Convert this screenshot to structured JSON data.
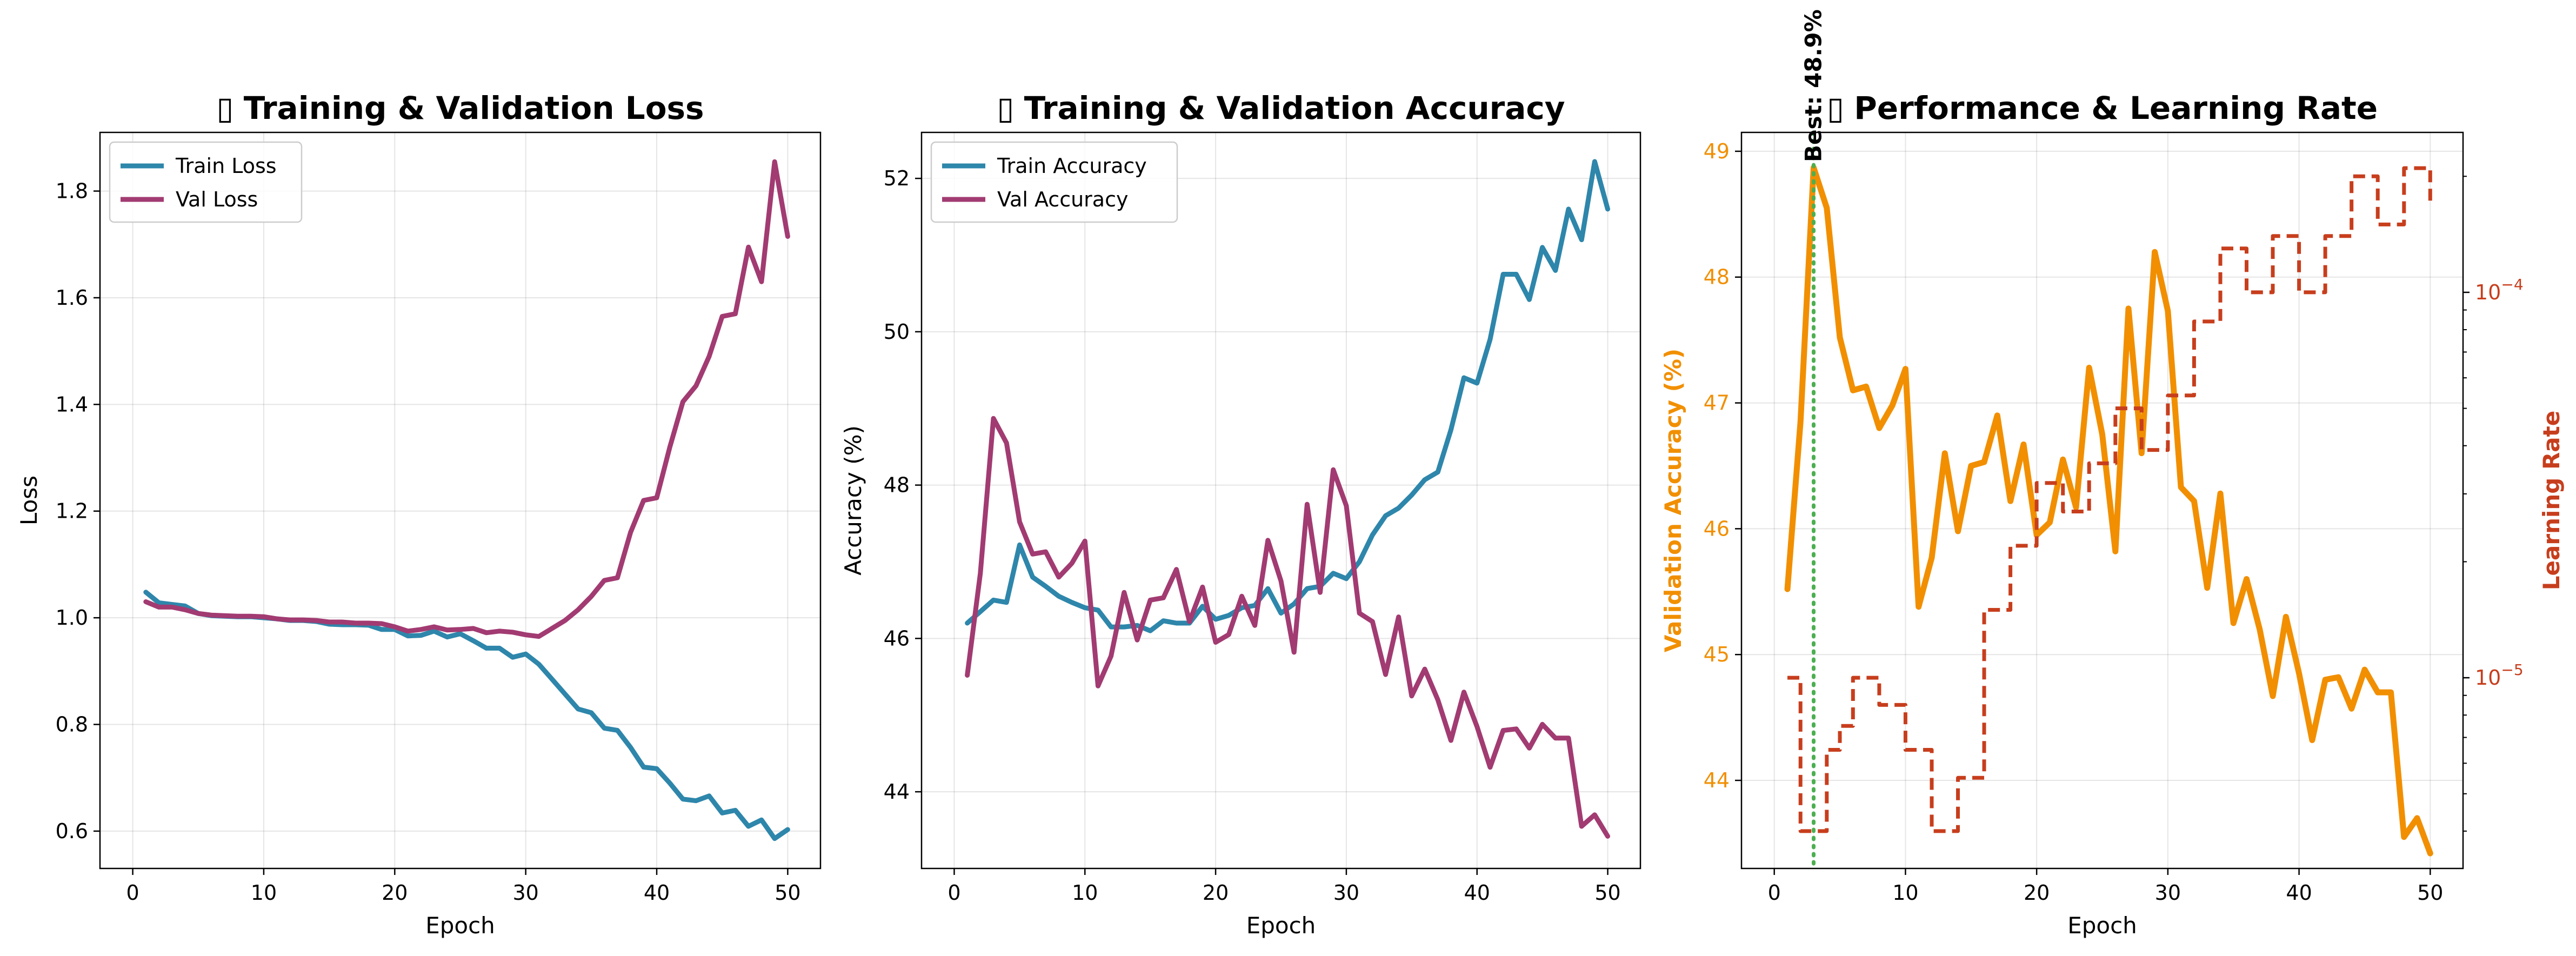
{
  "chart_data": [
    {
      "type": "line",
      "title": "Training & Validation Loss",
      "title_icon": "missing-glyph-icon",
      "xlabel": "Epoch",
      "ylabel": "Loss",
      "xlim": [
        -2.5,
        52.5
      ],
      "ylim": [
        0.53,
        1.91
      ],
      "xticks": [
        "0",
        "10",
        "20",
        "30",
        "40",
        "50"
      ],
      "yticks": [
        "0.6",
        "0.8",
        "1.0",
        "1.2",
        "1.4",
        "1.6",
        "1.8"
      ],
      "grid": true,
      "legend_position": "upper-left",
      "series": [
        {
          "name": "Train Loss",
          "color": "#2E86AB",
          "x": [
            1,
            2,
            3,
            4,
            5,
            6,
            7,
            8,
            9,
            10,
            11,
            12,
            13,
            14,
            15,
            16,
            17,
            18,
            19,
            20,
            21,
            22,
            23,
            24,
            25,
            26,
            27,
            28,
            29,
            30,
            31,
            32,
            33,
            34,
            35,
            36,
            37,
            38,
            39,
            40,
            41,
            42,
            43,
            44,
            45,
            46,
            47,
            48,
            49,
            50
          ],
          "y": [
            1.048,
            1.028,
            1.025,
            1.022,
            1.008,
            1.004,
            1.003,
            1.002,
            1.002,
            1.0,
            0.998,
            0.995,
            0.995,
            0.993,
            0.988,
            0.987,
            0.987,
            0.986,
            0.978,
            0.978,
            0.966,
            0.967,
            0.975,
            0.964,
            0.97,
            0.957,
            0.943,
            0.943,
            0.926,
            0.932,
            0.913,
            0.885,
            0.857,
            0.829,
            0.822,
            0.793,
            0.789,
            0.757,
            0.72,
            0.717,
            0.69,
            0.66,
            0.657,
            0.666,
            0.634,
            0.639,
            0.609,
            0.621,
            0.586,
            0.603
          ]
        },
        {
          "name": "Val Loss",
          "color": "#A23B72",
          "x": [
            1,
            2,
            3,
            4,
            5,
            6,
            7,
            8,
            9,
            10,
            11,
            12,
            13,
            14,
            15,
            16,
            17,
            18,
            19,
            20,
            21,
            22,
            23,
            24,
            25,
            26,
            27,
            28,
            29,
            30,
            31,
            32,
            33,
            34,
            35,
            36,
            37,
            38,
            39,
            40,
            41,
            42,
            43,
            44,
            45,
            46,
            47,
            48,
            49,
            50
          ],
          "y": [
            1.03,
            1.02,
            1.02,
            1.015,
            1.008,
            1.005,
            1.004,
            1.003,
            1.003,
            1.002,
            0.998,
            0.996,
            0.996,
            0.995,
            0.992,
            0.992,
            0.99,
            0.99,
            0.989,
            0.983,
            0.975,
            0.978,
            0.983,
            0.977,
            0.978,
            0.98,
            0.972,
            0.975,
            0.973,
            0.968,
            0.965,
            0.98,
            0.995,
            1.015,
            1.04,
            1.07,
            1.075,
            1.16,
            1.22,
            1.225,
            1.32,
            1.405,
            1.435,
            1.49,
            1.565,
            1.57,
            1.695,
            1.63,
            1.855,
            1.715
          ]
        }
      ]
    },
    {
      "type": "line",
      "title": "Training & Validation Accuracy",
      "title_icon": "missing-glyph-icon",
      "xlabel": "Epoch",
      "ylabel": "Accuracy (%)",
      "xlim": [
        -2.5,
        52.5
      ],
      "ylim": [
        43.0,
        52.6
      ],
      "xticks": [
        "0",
        "10",
        "20",
        "30",
        "40",
        "50"
      ],
      "yticks": [
        "44",
        "46",
        "48",
        "50",
        "52"
      ],
      "grid": true,
      "legend_position": "upper-left",
      "series": [
        {
          "name": "Train Accuracy",
          "color": "#2E86AB",
          "x": [
            1,
            2,
            3,
            4,
            5,
            6,
            7,
            8,
            9,
            10,
            11,
            12,
            13,
            14,
            15,
            16,
            17,
            18,
            19,
            20,
            21,
            22,
            23,
            24,
            25,
            26,
            27,
            28,
            29,
            30,
            31,
            32,
            33,
            34,
            35,
            36,
            37,
            38,
            39,
            40,
            41,
            42,
            43,
            44,
            45,
            46,
            47,
            48,
            49,
            50
          ],
          "y": [
            46.2,
            46.35,
            46.5,
            46.47,
            47.22,
            46.8,
            46.68,
            46.55,
            46.47,
            46.4,
            46.37,
            46.15,
            46.15,
            46.17,
            46.1,
            46.23,
            46.2,
            46.2,
            46.42,
            46.25,
            46.3,
            46.4,
            46.43,
            46.65,
            46.33,
            46.45,
            46.65,
            46.68,
            46.85,
            46.78,
            47.0,
            47.35,
            47.6,
            47.7,
            47.87,
            48.07,
            48.17,
            48.72,
            49.4,
            49.33,
            49.9,
            50.75,
            50.75,
            50.42,
            51.1,
            50.8,
            51.6,
            51.2,
            52.22,
            51.6
          ]
        },
        {
          "name": "Val Accuracy",
          "color": "#A23B72",
          "x": [
            1,
            2,
            3,
            4,
            5,
            6,
            7,
            8,
            9,
            10,
            11,
            12,
            13,
            14,
            15,
            16,
            17,
            18,
            19,
            20,
            21,
            22,
            23,
            24,
            25,
            26,
            27,
            28,
            29,
            30,
            31,
            32,
            33,
            34,
            35,
            36,
            37,
            38,
            39,
            40,
            41,
            42,
            43,
            44,
            45,
            46,
            47,
            48,
            49,
            50
          ],
          "y": [
            45.52,
            46.85,
            48.87,
            48.55,
            47.52,
            47.1,
            47.13,
            46.8,
            46.98,
            47.27,
            45.38,
            45.77,
            46.6,
            45.98,
            46.5,
            46.53,
            46.9,
            46.22,
            46.67,
            45.95,
            46.05,
            46.55,
            46.17,
            47.28,
            46.75,
            45.82,
            47.75,
            46.6,
            48.2,
            47.73,
            46.33,
            46.22,
            45.53,
            46.28,
            45.25,
            45.6,
            45.2,
            44.67,
            45.3,
            44.85,
            44.32,
            44.8,
            44.82,
            44.57,
            44.88,
            44.7,
            44.7,
            43.55,
            43.7,
            43.42
          ]
        }
      ]
    },
    {
      "type": "line",
      "title": "Performance & Learning Rate",
      "title_icon": "missing-glyph-icon",
      "xlabel": "Epoch",
      "ylabel": "Validation Accuracy (%)",
      "ylabel_right": "Learning Rate",
      "xlim": [
        -2.5,
        52.5
      ],
      "ylim": [
        43.3,
        49.15
      ],
      "ylim_right": [
        3.2e-06,
        0.00026
      ],
      "y_right_scale": "log",
      "xticks": [
        "0",
        "10",
        "20",
        "30",
        "40",
        "50"
      ],
      "yticks": [
        "44",
        "45",
        "46",
        "47",
        "48",
        "49"
      ],
      "yticks_right": [
        {
          "base": "10",
          "exp": "−5"
        },
        {
          "base": "10",
          "exp": "−4"
        }
      ],
      "grid": true,
      "accuracy_color": "#F18F01",
      "lr_color": "#C73E1D",
      "best_line_color": "#4CAF50",
      "best_epoch": 3,
      "best_label": "Best: 48.9%",
      "series": [
        {
          "axis": "left",
          "color": "#F18F01",
          "x": [
            1,
            2,
            3,
            4,
            5,
            6,
            7,
            8,
            9,
            10,
            11,
            12,
            13,
            14,
            15,
            16,
            17,
            18,
            19,
            20,
            21,
            22,
            23,
            24,
            25,
            26,
            27,
            28,
            29,
            30,
            31,
            32,
            33,
            34,
            35,
            36,
            37,
            38,
            39,
            40,
            41,
            42,
            43,
            44,
            45,
            46,
            47,
            48,
            49,
            50
          ],
          "y": [
            45.52,
            46.85,
            48.87,
            48.55,
            47.52,
            47.1,
            47.13,
            46.8,
            46.98,
            47.27,
            45.38,
            45.77,
            46.6,
            45.98,
            46.5,
            46.53,
            46.9,
            46.22,
            46.67,
            45.95,
            46.05,
            46.55,
            46.17,
            47.28,
            46.75,
            45.82,
            47.75,
            46.6,
            48.2,
            47.73,
            46.33,
            46.22,
            45.53,
            46.28,
            45.25,
            45.6,
            45.2,
            44.67,
            45.3,
            44.85,
            44.32,
            44.8,
            44.82,
            44.57,
            44.88,
            44.7,
            44.7,
            43.55,
            43.7,
            43.42
          ]
        },
        {
          "axis": "right",
          "color": "#C73E1D",
          "dashed": true,
          "step": true,
          "x": [
            1,
            2,
            3,
            4,
            5,
            6,
            7,
            8,
            9,
            10,
            11,
            12,
            13,
            14,
            15,
            16,
            17,
            18,
            19,
            20,
            21,
            22,
            23,
            24,
            25,
            26,
            27,
            28,
            29,
            30,
            31,
            32,
            33,
            34,
            35,
            36,
            37,
            38,
            39,
            40,
            41,
            42,
            43,
            44,
            45,
            46,
            47,
            48,
            49,
            50
          ],
          "y": [
            1e-05,
            4e-06,
            4e-06,
            6.5e-06,
            7.5e-06,
            1e-05,
            1e-05,
            8.5e-06,
            8.5e-06,
            6.5e-06,
            6.5e-06,
            4e-06,
            4e-06,
            5.5e-06,
            5.5e-06,
            1.5e-05,
            1.5e-05,
            2.2e-05,
            2.2e-05,
            3.2e-05,
            3.2e-05,
            2.7e-05,
            2.7e-05,
            3.6e-05,
            3.6e-05,
            5e-05,
            5e-05,
            3.9e-05,
            3.9e-05,
            5.4e-05,
            5.4e-05,
            8.4e-05,
            8.4e-05,
            0.00013,
            0.00013,
            0.0001,
            0.0001,
            0.00014,
            0.00014,
            0.0001,
            0.0001,
            0.00014,
            0.00014,
            0.0002,
            0.0002,
            0.00015,
            0.00015,
            0.00021,
            0.00021,
            0.00017
          ]
        }
      ]
    }
  ]
}
